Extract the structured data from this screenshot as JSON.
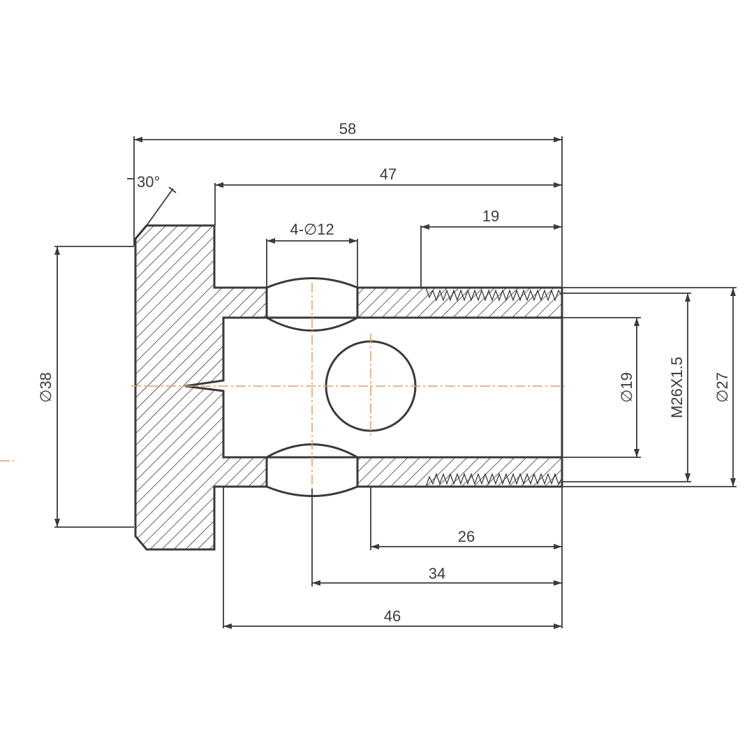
{
  "drawing": {
    "chamfer_angle": "30°",
    "dims": {
      "overall_length": "58",
      "threaded_body_length": "47",
      "thread_length": "19",
      "cross_holes": "4-∅12",
      "head_diameter": "∅38",
      "bore_diameter": "∅19",
      "thread_spec": "M26X1.5",
      "outer_diameter": "∅27",
      "hole_to_end_26": "26",
      "hole_to_end_34": "34",
      "bore_depth": "46"
    }
  },
  "colors": {
    "line": "#3a3a3a",
    "centerline": "#d9a46a"
  }
}
